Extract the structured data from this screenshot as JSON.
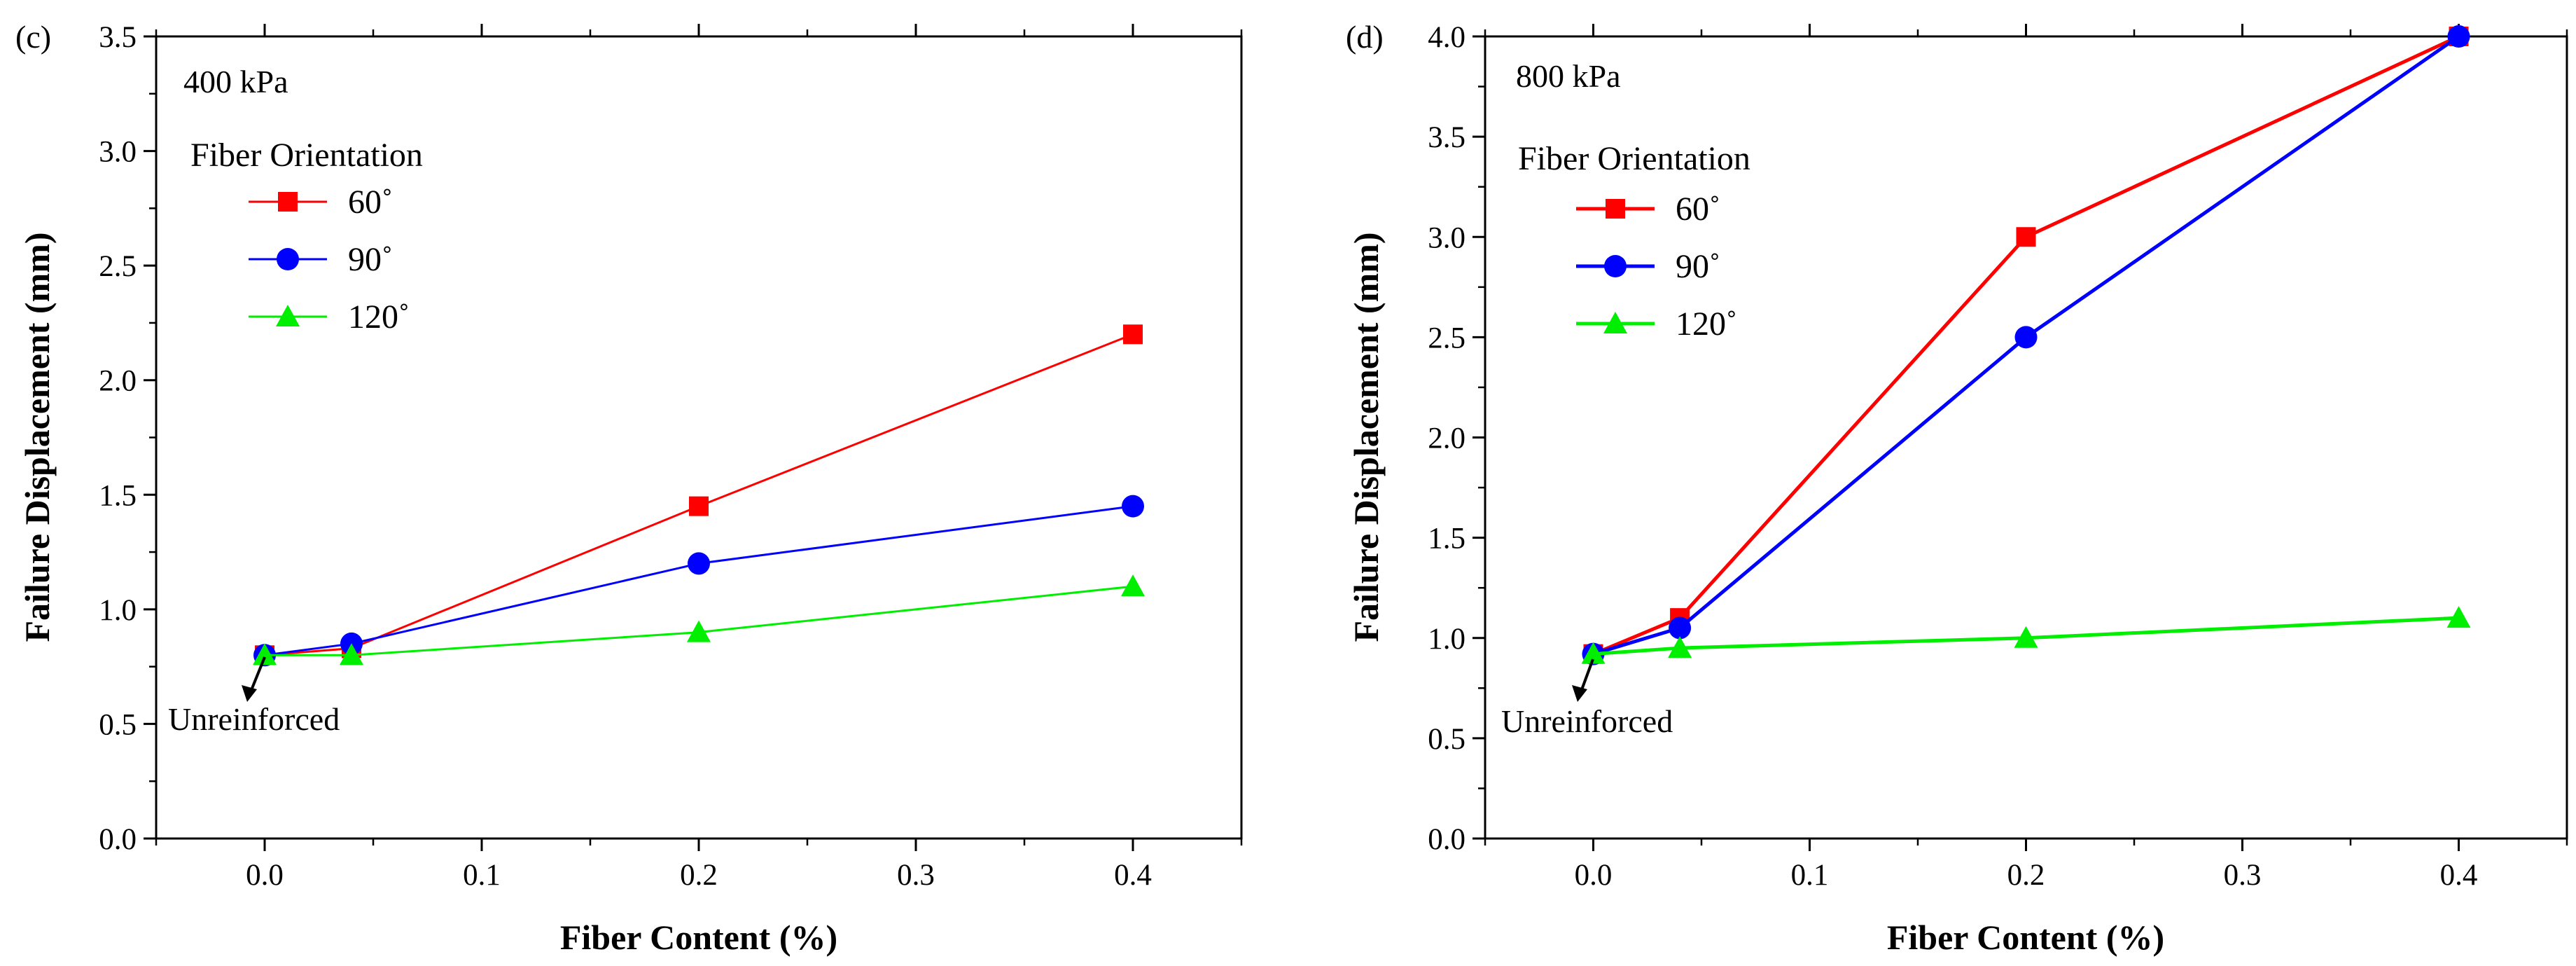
{
  "chart_data": [
    {
      "type": "line",
      "panel_label": "(c)",
      "annotation": "400 kPa",
      "xlabel": "Fiber Content (%)",
      "ylabel": "Failure Displacement (mm)",
      "xlim": [
        -0.05,
        0.45
      ],
      "ylim": [
        0,
        3.5
      ],
      "xticks": [
        0.0,
        0.1,
        0.2,
        0.3,
        0.4
      ],
      "xtick_labels": [
        "0.0",
        "0.1",
        "0.2",
        "0.3",
        "0.4"
      ],
      "yticks": [
        0.0,
        0.5,
        1.0,
        1.5,
        2.0,
        2.5,
        3.0,
        3.5
      ],
      "ytick_labels": [
        "0.0",
        "0.5",
        "1.0",
        "1.5",
        "2.0",
        "2.5",
        "3.0",
        "3.5"
      ],
      "x": [
        0.0,
        0.04,
        0.2,
        0.4
      ],
      "legend_title": "Fiber Orientation",
      "legend_position": "upper-left",
      "unreinforced_label": "Unreinforced",
      "unreinforced_point": [
        0.0,
        0.8
      ],
      "series": [
        {
          "name": "60˚",
          "color": "#ff0000",
          "marker": "square",
          "values": [
            0.8,
            0.83,
            1.45,
            2.2
          ]
        },
        {
          "name": "90˚",
          "color": "#0000ff",
          "marker": "circle",
          "values": [
            0.8,
            0.85,
            1.2,
            1.45
          ]
        },
        {
          "name": "120˚",
          "color": "#00ee00",
          "marker": "triangle",
          "values": [
            0.8,
            0.8,
            0.9,
            1.1
          ]
        }
      ]
    },
    {
      "type": "line",
      "panel_label": "(d)",
      "annotation": "800 kPa",
      "xlabel": "Fiber Content (%)",
      "ylabel": "Failure Displacement (mm)",
      "xlim": [
        -0.05,
        0.45
      ],
      "ylim": [
        0,
        4.0
      ],
      "xticks": [
        0.0,
        0.1,
        0.2,
        0.3,
        0.4
      ],
      "xtick_labels": [
        "0.0",
        "0.1",
        "0.2",
        "0.3",
        "0.4"
      ],
      "yticks": [
        0.0,
        0.5,
        1.0,
        1.5,
        2.0,
        2.5,
        3.0,
        3.5,
        4.0
      ],
      "ytick_labels": [
        "0.0",
        "0.5",
        "1.0",
        "1.5",
        "2.0",
        "2.5",
        "3.0",
        "3.5",
        "4.0"
      ],
      "x": [
        0.0,
        0.04,
        0.2,
        0.4
      ],
      "legend_title": "Fiber Orientation",
      "legend_position": "upper-left",
      "unreinforced_label": "Unreinforced",
      "unreinforced_point": [
        0.0,
        0.92
      ],
      "series": [
        {
          "name": "60˚",
          "color": "#ff0000",
          "marker": "square",
          "values": [
            0.92,
            1.1,
            3.0,
            4.0
          ]
        },
        {
          "name": "90˚",
          "color": "#0000ff",
          "marker": "circle",
          "values": [
            0.92,
            1.05,
            2.5,
            4.0
          ]
        },
        {
          "name": "120˚",
          "color": "#00ee00",
          "marker": "triangle",
          "values": [
            0.92,
            0.95,
            1.0,
            1.1
          ]
        }
      ]
    }
  ]
}
